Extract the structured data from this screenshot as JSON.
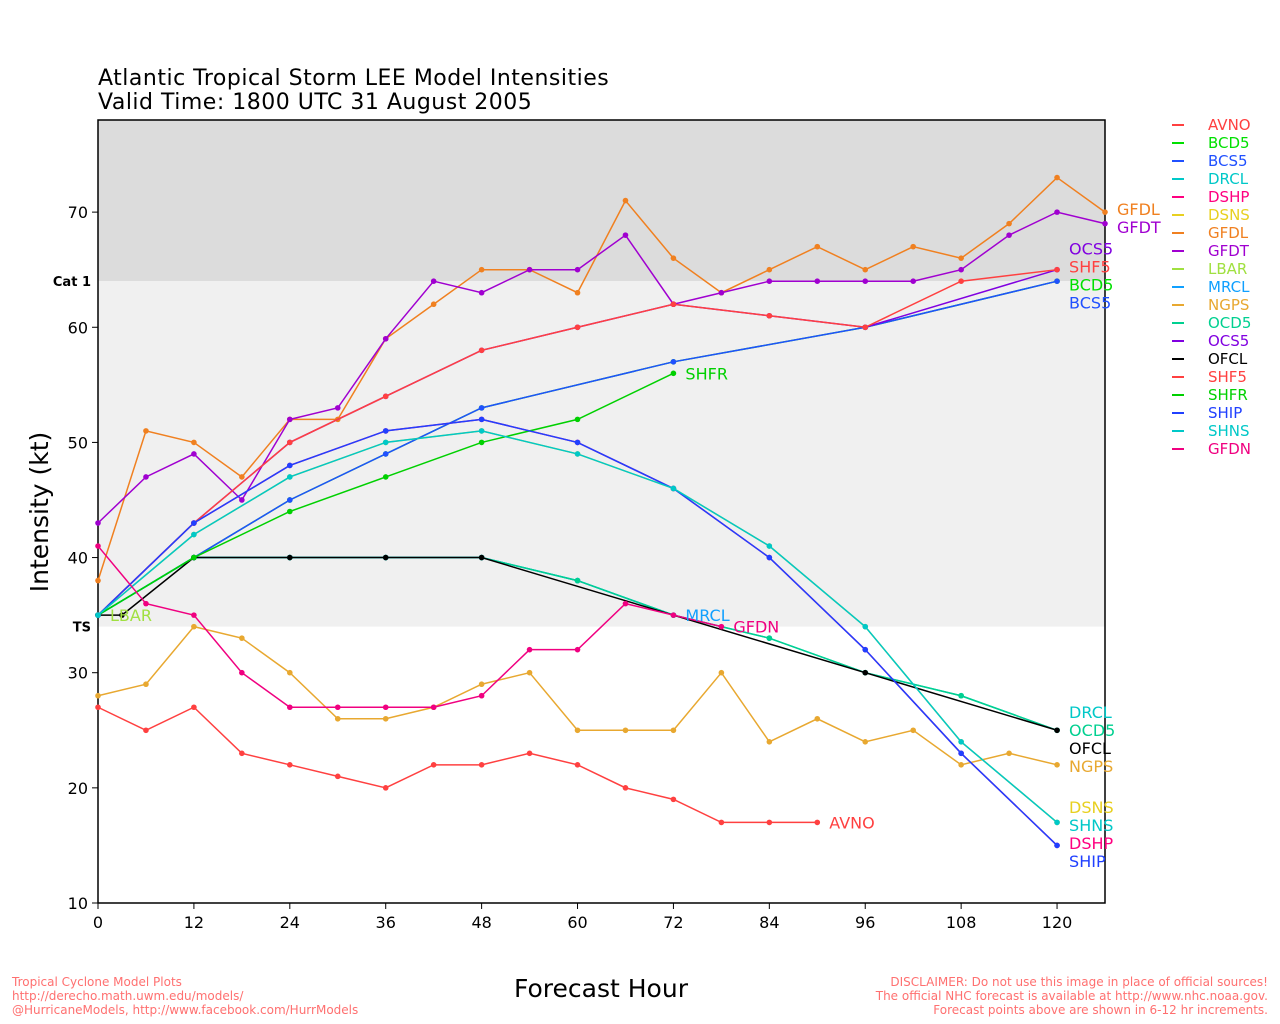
{
  "chart_data": {
    "type": "line",
    "title": "Atlantic Tropical Storm LEE Model Intensities",
    "subtitle": "Valid Time: 1800 UTC 31 August 2005",
    "xlabel": "Forecast Hour",
    "ylabel": "Intensity (kt)",
    "xlim": [
      0,
      126
    ],
    "ylim": [
      10,
      78
    ],
    "xticks": [
      0,
      12,
      24,
      36,
      48,
      60,
      72,
      84,
      96,
      108,
      120
    ],
    "yticks": [
      10,
      20,
      30,
      40,
      50,
      60,
      70
    ],
    "bands": [
      {
        "label": "Cat 1",
        "from": 64,
        "to": 78,
        "color": "#dcdcdc"
      },
      {
        "label": "TS",
        "from": 34,
        "to": 64,
        "color": "#f0f0f0"
      }
    ],
    "legend_position": "right",
    "series": [
      {
        "name": "AVNO",
        "color": "#ff4040",
        "x": [
          0,
          6,
          12,
          18,
          24,
          30,
          36,
          42,
          48,
          54,
          60,
          66,
          72,
          78,
          84,
          90
        ],
        "y": [
          27,
          25,
          27,
          23,
          22,
          21,
          20,
          22,
          22,
          23,
          22,
          20,
          19,
          17,
          17,
          17
        ]
      },
      {
        "name": "BCD5",
        "color": "#00e000",
        "x": [
          0,
          12,
          24,
          36,
          48,
          72,
          96,
          120
        ],
        "y": [
          35,
          40,
          45,
          49,
          53,
          57,
          60,
          64
        ]
      },
      {
        "name": "BCS5",
        "color": "#2050ff",
        "x": [
          0,
          12,
          24,
          36,
          48,
          72,
          96,
          120
        ],
        "y": [
          35,
          40,
          45,
          49,
          53,
          57,
          60,
          64
        ]
      },
      {
        "name": "DRCL",
        "color": "#00c8c8",
        "x": [
          0,
          12,
          24,
          36,
          48,
          60,
          72,
          84,
          96,
          108,
          120
        ],
        "y": [
          35,
          40,
          40,
          40,
          40,
          38,
          35,
          33,
          30,
          28,
          25
        ]
      },
      {
        "name": "DSHP",
        "color": "#ff0080",
        "x": [
          0,
          12,
          24,
          36,
          48,
          60,
          72,
          84,
          96,
          108,
          120
        ],
        "y": [
          35,
          43,
          48,
          51,
          52,
          50,
          46,
          40,
          32,
          23,
          15
        ]
      },
      {
        "name": "DSNS",
        "color": "#e8d020",
        "x": [
          0,
          12,
          24,
          36,
          48,
          60,
          72,
          84,
          96,
          108,
          120
        ],
        "y": [
          35,
          42,
          47,
          50,
          51,
          49,
          46,
          41,
          34,
          24,
          17
        ]
      },
      {
        "name": "GFDL",
        "color": "#f08020",
        "x": [
          0,
          6,
          12,
          18,
          24,
          30,
          36,
          42,
          48,
          54,
          60,
          66,
          72,
          78,
          84,
          90,
          96,
          102,
          108,
          114,
          120,
          126
        ],
        "y": [
          38,
          51,
          50,
          47,
          52,
          52,
          59,
          62,
          65,
          65,
          63,
          71,
          66,
          63,
          65,
          67,
          65,
          67,
          66,
          69,
          73,
          70
        ]
      },
      {
        "name": "GFDT",
        "color": "#a000d0",
        "x": [
          0,
          6,
          12,
          18,
          24,
          30,
          36,
          42,
          48,
          54,
          60,
          66,
          72,
          78,
          84,
          90,
          96,
          102,
          108,
          114,
          120,
          126
        ],
        "y": [
          43,
          47,
          49,
          45,
          52,
          53,
          59,
          64,
          63,
          65,
          65,
          68,
          62,
          63,
          64,
          64,
          64,
          64,
          65,
          68,
          70,
          69
        ]
      },
      {
        "name": "LBAR",
        "color": "#a0e040",
        "x": [
          0
        ],
        "y": [
          35
        ]
      },
      {
        "name": "MRCL",
        "color": "#10a0ff",
        "x": [
          0,
          12,
          24,
          36,
          48,
          60,
          72
        ],
        "y": [
          35,
          40,
          40,
          40,
          40,
          38,
          35
        ]
      },
      {
        "name": "NGPS",
        "color": "#e8a830",
        "x": [
          0,
          6,
          12,
          18,
          24,
          30,
          36,
          42,
          48,
          54,
          60,
          66,
          72,
          78,
          84,
          90,
          96,
          102,
          108,
          114,
          120
        ],
        "y": [
          28,
          29,
          34,
          33,
          30,
          26,
          26,
          27,
          29,
          30,
          25,
          25,
          25,
          30,
          24,
          26,
          24,
          25,
          22,
          23,
          22
        ]
      },
      {
        "name": "OCD5",
        "color": "#00d090",
        "x": [
          0,
          12,
          24,
          36,
          48,
          60,
          72,
          84,
          96,
          108,
          120
        ],
        "y": [
          35,
          40,
          40,
          40,
          40,
          38,
          35,
          33,
          30,
          28,
          25
        ]
      },
      {
        "name": "OCS5",
        "color": "#8000e0",
        "x": [
          0,
          12,
          24,
          36,
          48,
          60,
          72,
          84,
          96,
          120
        ],
        "y": [
          35,
          43,
          50,
          54,
          58,
          60,
          62,
          61,
          60,
          65
        ]
      },
      {
        "name": "OFCL",
        "color": "#000000",
        "x": [
          0,
          3,
          12,
          24,
          36,
          48,
          96,
          120
        ],
        "y": [
          35,
          35,
          40,
          40,
          40,
          40,
          30,
          25
        ]
      },
      {
        "name": "SHF5",
        "color": "#ff4040",
        "x": [
          0,
          12,
          24,
          36,
          48,
          60,
          72,
          84,
          96,
          108,
          120
        ],
        "y": [
          35,
          43,
          50,
          54,
          58,
          60,
          62,
          61,
          60,
          64,
          65
        ]
      },
      {
        "name": "SHFR",
        "color": "#00d000",
        "x": [
          0,
          12,
          24,
          36,
          48,
          60,
          72
        ],
        "y": [
          35,
          40,
          44,
          47,
          50,
          52,
          56
        ]
      },
      {
        "name": "SHIP",
        "color": "#2040ff",
        "x": [
          0,
          12,
          24,
          36,
          48,
          60,
          72,
          84,
          96,
          108,
          120
        ],
        "y": [
          35,
          43,
          48,
          51,
          52,
          50,
          46,
          40,
          32,
          23,
          15
        ]
      },
      {
        "name": "SHNS",
        "color": "#00c8c8",
        "x": [
          0,
          12,
          24,
          36,
          48,
          60,
          72,
          84,
          96,
          108,
          120
        ],
        "y": [
          35,
          42,
          47,
          50,
          51,
          49,
          46,
          41,
          34,
          24,
          17
        ]
      },
      {
        "name": "GFDN",
        "color": "#f00080",
        "x": [
          0,
          6,
          12,
          18,
          24,
          30,
          36,
          42,
          48,
          54,
          60,
          66,
          72,
          78
        ],
        "y": [
          41,
          36,
          35,
          30,
          27,
          27,
          27,
          27,
          28,
          32,
          32,
          36,
          35,
          34
        ]
      }
    ]
  },
  "footer": {
    "left": [
      "Tropical Cyclone Model Plots",
      "http://derecho.math.uwm.edu/models/",
      "@HurricaneModels, http://www.facebook.com/HurrModels"
    ],
    "right": [
      "DISCLAIMER: Do not use this image in place of official sources!",
      "The official NHC forecast is available at http://www.nhc.noaa.gov.",
      "Forecast points above are shown in 6-12 hr increments."
    ]
  }
}
